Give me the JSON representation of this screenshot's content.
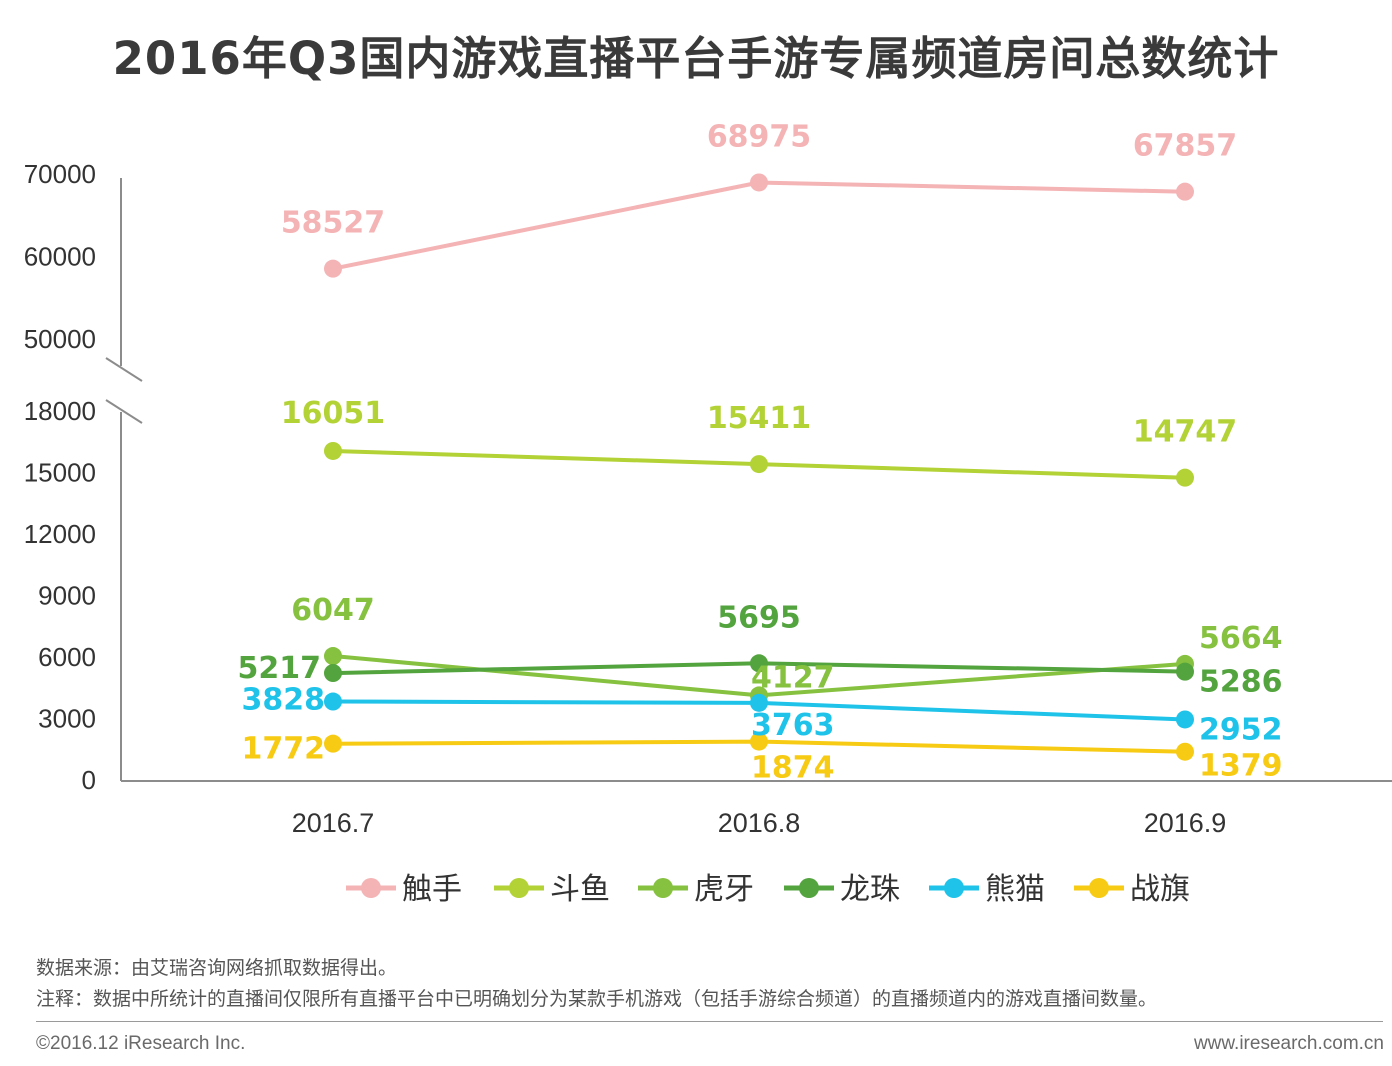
{
  "chart_data": {
    "type": "line",
    "title": "2016年Q3国内游戏直播平台手游专属频道房间总数统计",
    "categories": [
      "2016.7",
      "2016.8",
      "2016.9"
    ],
    "y_axis": {
      "ticks_lower": [
        "0",
        "3000",
        "6000",
        "9000",
        "12000",
        "15000",
        "18000"
      ],
      "ticks_upper": [
        "50000",
        "60000",
        "70000"
      ],
      "broken": true,
      "lower_range": [
        0,
        18000
      ],
      "upper_range": [
        50000,
        70000
      ]
    },
    "series": [
      {
        "name": "触手",
        "color": "#f4b3b5",
        "values": [
          58527,
          68975,
          67857
        ]
      },
      {
        "name": "斗鱼",
        "color": "#b2d235",
        "values": [
          16051,
          15411,
          14747
        ]
      },
      {
        "name": "虎牙",
        "color": "#86c13f",
        "values": [
          6047,
          4127,
          5664
        ]
      },
      {
        "name": "龙珠",
        "color": "#53a33f",
        "values": [
          5217,
          5695,
          5286
        ]
      },
      {
        "name": "熊猫",
        "color": "#1fc3ea",
        "values": [
          3828,
          3763,
          2952
        ]
      },
      {
        "name": "战旗",
        "color": "#f7cb14",
        "values": [
          1772,
          1874,
          1379
        ]
      }
    ],
    "legend_position": "bottom",
    "grid": false
  },
  "notes": {
    "source": "数据来源：由艾瑞咨询网络抓取数据得出。",
    "remark": "注释：数据中所统计的直播间仅限所有直播平台中已明确划分为某款手机游戏（包括手游综合频道）的直播频道内的游戏直播间数量。"
  },
  "footer": {
    "copyright": "©2016.12 iResearch Inc.",
    "website": "www.iresearch.com.cn"
  }
}
